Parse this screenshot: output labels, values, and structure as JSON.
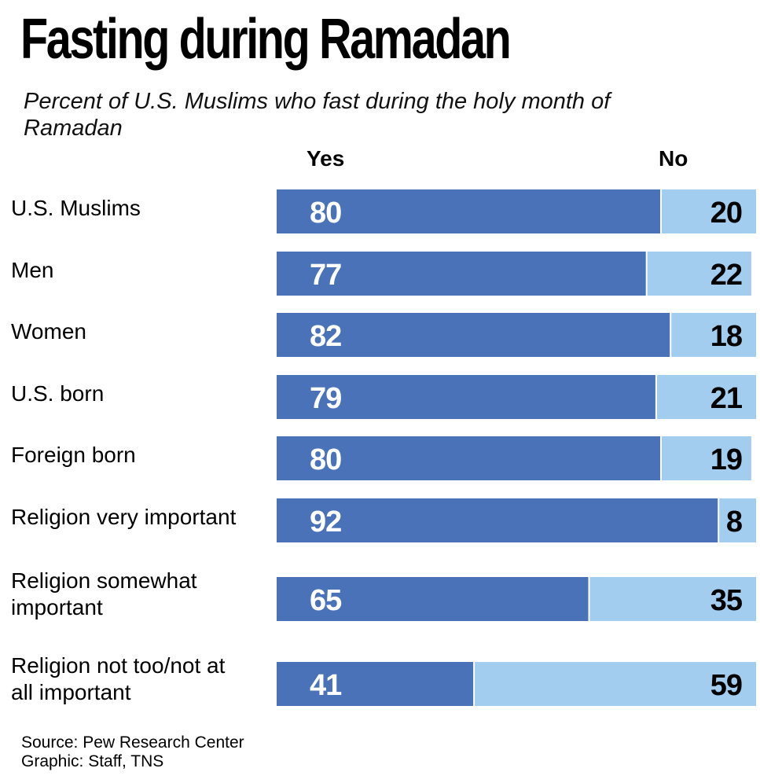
{
  "chart_data": {
    "type": "bar",
    "orientation": "horizontal",
    "stacked": true,
    "title": "Fasting during Ramadan",
    "subtitle": "Percent of U.S. Muslims who fast during the holy month of Ramadan",
    "xlim": [
      0,
      100
    ],
    "grid": false,
    "categories": [
      "U.S. Muslims",
      "Men",
      "Women",
      "U.S. born",
      "Foreign born",
      "Religion very important",
      "Religion somewhat important",
      "Religion not too/not at all important"
    ],
    "series": [
      {
        "name": "Yes",
        "color": "#4a72b8",
        "values": [
          80,
          77,
          82,
          79,
          80,
          92,
          65,
          41
        ]
      },
      {
        "name": "No",
        "color": "#a3cdef",
        "values": [
          20,
          22,
          18,
          21,
          19,
          8,
          35,
          59
        ]
      }
    ]
  },
  "footer": {
    "source": "Source: Pew Research Center",
    "credit": "Graphic: Staff, TNS"
  }
}
